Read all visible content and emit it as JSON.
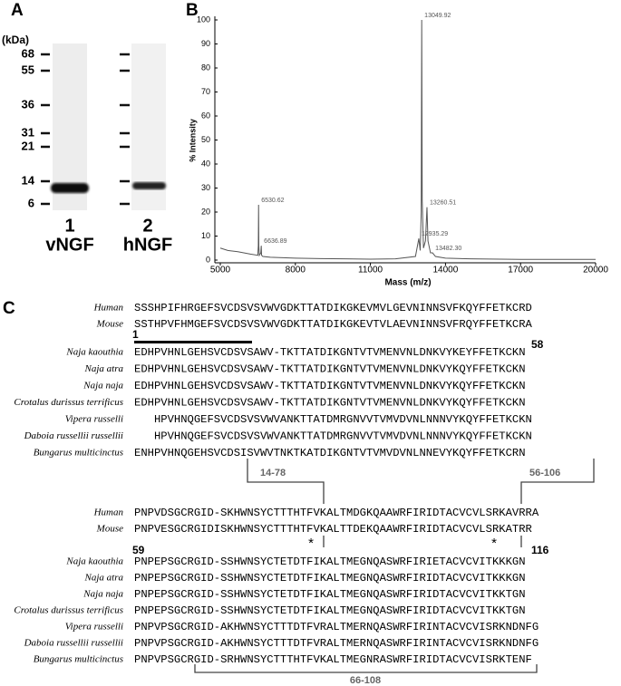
{
  "panel_a": {
    "label": "A",
    "unit": "(kDa)",
    "markers": [
      68,
      55,
      36,
      31,
      21,
      14,
      6
    ],
    "lanes": [
      {
        "number": "1",
        "name": "vNGF"
      },
      {
        "number": "2",
        "name": "hNGF"
      }
    ]
  },
  "chart_data": {
    "type": "line",
    "label": "B",
    "x_label": "Mass (m/z)",
    "y_label": "% Intensity",
    "xlim": [
      5000,
      20000
    ],
    "xticks": [
      5000,
      8000,
      11000,
      14000,
      17000,
      20000
    ],
    "ylim": [
      0,
      100
    ],
    "yticks": [
      0,
      10,
      20,
      30,
      40,
      50,
      60,
      70,
      80,
      90,
      100
    ],
    "color": "#555555",
    "x": [
      5000,
      5300,
      5700,
      6200,
      6500,
      6520,
      6530,
      6540,
      6560,
      6620,
      6637,
      6650,
      6700,
      7000,
      7500,
      8000,
      9000,
      10000,
      11000,
      12000,
      12800,
      12935,
      12990,
      13030,
      13050,
      13070,
      13120,
      13200,
      13260,
      13300,
      13400,
      13482,
      13600,
      14000,
      15000,
      17000,
      20000
    ],
    "values": [
      5,
      4,
      3.5,
      2.5,
      2,
      6,
      23,
      6,
      2,
      3,
      6,
      2,
      1.5,
      1.2,
      1,
      0.8,
      0.6,
      0.5,
      0.4,
      0.5,
      1.5,
      9,
      4,
      20,
      100,
      25,
      5,
      8,
      22,
      8,
      3,
      3,
      1.5,
      0.8,
      0.5,
      0.3,
      0.3
    ],
    "peaks": [
      6530.62,
      6636.89,
      13049.92,
      13260.51,
      12935.29,
      {
        "value": 13482.3,
        "label": "13482.30"
      }
    ]
  },
  "panel_c": {
    "label": "C",
    "blocks": [
      {
        "rows": [
          {
            "name": "Human",
            "sequence": "SSSHPIFHRGEFSVCDSVSVWVGDKTTATDIKGKEVMVLGEVNINNSVFKQYFFETKCRD"
          },
          {
            "name": "Mouse",
            "sequence": "SSTHPVFHMGEFSVCDSVSVWVGDKTTATDIKGKEVTVLAEVNINNSVFRQYFFETKCRA"
          },
          {
            "name": "Naja kaouthia",
            "sequence": "EDHPVHNLGEHSVCDSVSAWV-TKTTATDIKGNTVTVMENVNLDNKVYKEYFFETKCKN"
          },
          {
            "name": "Naja atra",
            "sequence": "EDHPVHNLGEHSVCDSVSAWV-TKTTATDIKGNTVTVMENVNLDNKVYKQYFFETKCKN"
          },
          {
            "name": "Naja naja",
            "sequence": "EDHPVHNLGEHSVCDSVSAWV-TKTTATDIKGNTVTVMENVNLDNKVYKQYFFETKCKN"
          },
          {
            "name": "Crotalus durissus terrificus",
            "sequence": "EDHPVHNLGEHSVCDSVSAWV-TKTTATDIKGNTVTVMENVNLDNKVYKQYFFETKCKN"
          },
          {
            "name": "Vipera russelli",
            "sequence": "HPVHNQGEFSVCDSVSVWVANKTTATDMRGNVVTVMVDVNLNNNVYKQYFFETKCKN"
          },
          {
            "name": "Daboia russellii russellii",
            "sequence": "HPVHNQGEFSVCDSVSVWVANKTTATDMRGNVVTVMVDVNLNNNVYKQYFFETKCKN"
          },
          {
            "name": "Bungarus multicinctus",
            "sequence": "ENHPVHNQGEHSVCDSISVWVTNKTKATDIKGNTVTVMVDVNLNNEVYKQYFFETKCRN"
          }
        ],
        "start": "1",
        "end": "58",
        "bonds": [
          "14-78",
          "56-106"
        ]
      },
      {
        "rows": [
          {
            "name": "Human",
            "sequence": "PNPVDSGCRGID-SKHWNSYCTTTHTFVKALTMDGKQAAWRFIRIDTACVCVLSRKAVRRA"
          },
          {
            "name": "Mouse",
            "sequence": "PNPVESGCRGIDISKHWNSYCTTTHTFVKALTTDEKQAAWRFIRIDTACVCVLSRKATRR"
          },
          {
            "name": "Naja kaouthia",
            "sequence": "PNPEPSGCRGID-SSHWNSYCTETDTFIKALTMEGNQASWRFIRIETACVCVITKKKGN"
          },
          {
            "name": "Naja atra",
            "sequence": "PNPEPSGCRGID-SSHWNSYCTETDTFIKALTMEGNQASWRFIRIDTACVCVITKKKGN"
          },
          {
            "name": "Naja naja",
            "sequence": "PNPEPSGCRGID-SSHWNSYCTETDTFIKALTMEGNQASWRFIRIDTACVCVITKKTGN"
          },
          {
            "name": "Crotalus durissus terrificus",
            "sequence": "PNPEPSGCRGID-SSHWNSYCTETDTFIKALTMEGNQASWRFIRIDTACVCVITKKTGN"
          },
          {
            "name": "Vipera russelli",
            "sequence": "PNPVPSGCRGID-AKHWNSYCTTTDTFVRALTMERNQASWRFIRINTACVCVISRKNDNFG"
          },
          {
            "name": "Daboia russellii russellii",
            "sequence": "PNPVPSGCRGID-AKHWNSYCTTTDTFVRALTMERNQASWRFIRINTACVCVISRKNDNFG"
          },
          {
            "name": "Bungarus multicinctus",
            "sequence": "PNPVPSGCRGID-SRHWNSYCTTTHTFVKALTMEGNRASWRFIRIDTACVCVISRKTENF"
          }
        ],
        "start": "59",
        "end": "116",
        "bonds": [
          "66-108"
        ],
        "marks": [
          "*",
          "*"
        ]
      }
    ]
  }
}
